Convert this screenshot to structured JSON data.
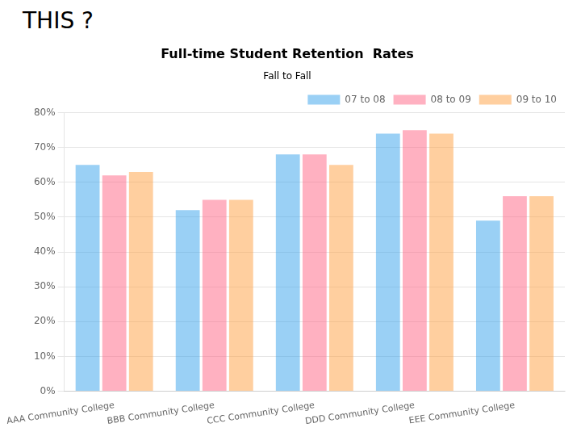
{
  "chart_data": {
    "type": "bar",
    "title": "Full-time Student Retention  Rates",
    "subtitle": "Fall to Fall",
    "annotations": [
      "THIS ?"
    ],
    "categories": [
      "AAA Community College",
      "BBB Community College",
      "CCC Community College",
      "DDD Community College",
      "EEE Community College"
    ],
    "series": [
      {
        "name": "07 to 08",
        "values": [
          0.65,
          0.52,
          0.68,
          0.74,
          0.49
        ]
      },
      {
        "name": "08 to 09",
        "values": [
          0.62,
          0.55,
          0.68,
          0.75,
          0.56
        ]
      },
      {
        "name": "09 to 10",
        "values": [
          0.63,
          0.55,
          0.65,
          0.74,
          0.56
        ]
      }
    ],
    "ylim": [
      0,
      0.8
    ],
    "yticks": [
      {
        "value": 0,
        "label": "0%"
      },
      {
        "value": 0.1,
        "label": "10%"
      },
      {
        "value": 0.2,
        "label": "20%"
      },
      {
        "value": 0.3,
        "label": "30%"
      },
      {
        "value": 0.4,
        "label": "40%"
      },
      {
        "value": 0.5,
        "label": "50%"
      },
      {
        "value": 0.6,
        "label": "60%"
      },
      {
        "value": 0.7,
        "label": "70%"
      },
      {
        "value": 0.8,
        "label": "80%"
      }
    ],
    "grid": true,
    "legend": "upper right"
  }
}
